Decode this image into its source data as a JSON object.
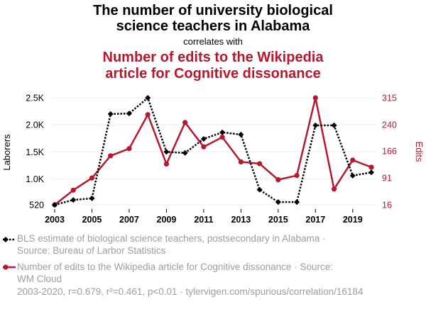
{
  "header": {
    "title_line1": "The number of university biological",
    "title_line2": "science teachers in Alabama",
    "correlates": "correlates with",
    "subtitle_line1": "Number of edits to the Wikipedia",
    "subtitle_line2": "article for Cognitive dissonance"
  },
  "colors": {
    "series1": "#000000",
    "series2": "#b5192e",
    "legend_text": "#9e9e9e"
  },
  "chart_data": {
    "type": "line",
    "x": [
      2003,
      2004,
      2005,
      2006,
      2007,
      2008,
      2009,
      2010,
      2011,
      2012,
      2013,
      2014,
      2015,
      2016,
      2017,
      2018,
      2019,
      2020
    ],
    "xticks": [
      "2003",
      "2005",
      "2007",
      "2009",
      "2011",
      "2013",
      "2015",
      "2017",
      "2019"
    ],
    "y_left": {
      "label": "Laborers",
      "ticks": [
        520,
        1000,
        1500,
        2000,
        2500
      ],
      "tick_labels": [
        "520",
        "1.0K",
        "1.5K",
        "2.0K",
        "2.5K"
      ],
      "range": [
        520,
        2500
      ]
    },
    "y_right": {
      "label": "Edits",
      "ticks": [
        16,
        91,
        166,
        240,
        315
      ],
      "tick_labels": [
        "16",
        "91",
        "166",
        "240",
        "315"
      ],
      "range": [
        16,
        315
      ]
    },
    "series": [
      {
        "name": "BLS estimate of biological science teachers, postsecondary in Alabama",
        "axis": "left",
        "values": [
          520,
          610,
          640,
          2200,
          2210,
          2500,
          1500,
          1480,
          1740,
          1860,
          1820,
          800,
          570,
          570,
          1990,
          1990,
          1060,
          1120
        ]
      },
      {
        "name": "Number of edits to the Wikipedia article for Cognitive dissonance",
        "axis": "right",
        "values": [
          16,
          57,
          91,
          153,
          173,
          268,
          130,
          246,
          178,
          205,
          136,
          131,
          86,
          98,
          315,
          60,
          141,
          121
        ]
      }
    ]
  },
  "legend": {
    "item1_line1": "BLS estimate of biological science teachers, postsecondary in Alabama ·",
    "item1_line2": "Source: Bureau of Larbor Statistics",
    "item2_line1": "Number of edits to the Wikipedia article for Cognitive dissonance · Source:",
    "item2_line2": "WM Cloud"
  },
  "footer": "2003-2020, r=0.679, r²=0.461, p<0.01 · tylervigen.com/spurious/correlation/16184"
}
